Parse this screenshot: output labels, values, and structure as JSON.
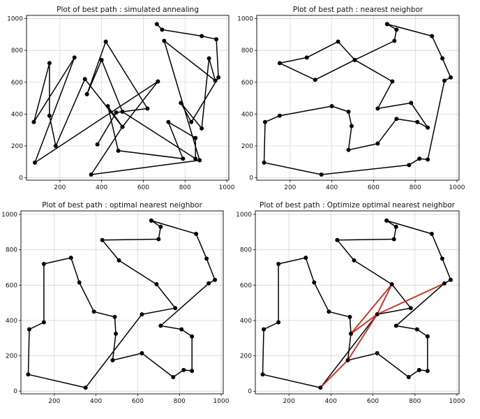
{
  "chart_data": [
    {
      "type": "line",
      "title": "Plot of best path : simulated annealing",
      "xticks": [
        200,
        400,
        600,
        800,
        1000
      ],
      "yticks": [
        0,
        200,
        400,
        600,
        800,
        1000
      ],
      "xlim": [
        40,
        1010
      ],
      "ylim": [
        -15,
        1020
      ],
      "grid": true,
      "series": [
        {
          "color": "#000000",
          "x": [
            665,
            690,
            880,
            950,
            960,
            830,
            780,
            880,
            915,
            945,
            700,
            870,
            350,
            500,
            320,
            180,
            150,
            150,
            75,
            270,
            80,
            670,
            500,
            430,
            480,
            790,
            720,
            850,
            850,
            500,
            400,
            330,
            420,
            620,
            470,
            380
          ],
          "y": [
            965,
            930,
            890,
            870,
            630,
            350,
            470,
            310,
            750,
            610,
            860,
            110,
            20,
            320,
            620,
            200,
            390,
            720,
            350,
            755,
            95,
            605,
            320,
            450,
            170,
            120,
            350,
            250,
            120,
            415,
            740,
            525,
            855,
            435,
            410,
            210
          ]
        }
      ]
    },
    {
      "type": "line",
      "title": "Plot of best path : nearest neighbor",
      "xticks": [
        200,
        400,
        600,
        800,
        1000
      ],
      "yticks": [
        0,
        200,
        400,
        600,
        800,
        1000
      ],
      "xlim": [
        40,
        1010
      ],
      "ylim": [
        -15,
        1020
      ],
      "grid": true,
      "series": [
        {
          "color": "#000000",
          "x": [
            665,
            710,
            700,
            510,
            430,
            280,
            150,
            320,
            510,
            690,
            620,
            780,
            860,
            810,
            710,
            620,
            480,
            495,
            480,
            400,
            150,
            80,
            75,
            350,
            770,
            820,
            860,
            940,
            970,
            930,
            880,
            665
          ],
          "y": [
            965,
            930,
            860,
            740,
            855,
            755,
            720,
            615,
            740,
            605,
            435,
            470,
            315,
            350,
            370,
            215,
            175,
            325,
            415,
            450,
            390,
            350,
            95,
            20,
            80,
            120,
            115,
            610,
            630,
            750,
            890,
            965
          ],
          "closed": true
        }
      ]
    },
    {
      "type": "line",
      "title": "Plot of best path : optimal nearest neighbor",
      "xticks": [
        200,
        400,
        600,
        800,
        1000
      ],
      "yticks": [
        0,
        200,
        400,
        600,
        800,
        1000
      ],
      "xlim": [
        40,
        1010
      ],
      "ylim": [
        -15,
        1020
      ],
      "grid": true,
      "series": [
        {
          "color": "#000000",
          "x": [
            665,
            710,
            700,
            430,
            510,
            690,
            780,
            620,
            350,
            75,
            80,
            150,
            150,
            280,
            320,
            390,
            490,
            495,
            480,
            620,
            770,
            820,
            860,
            860,
            810,
            710,
            940,
            970,
            930,
            880,
            665
          ],
          "y": [
            965,
            930,
            860,
            855,
            740,
            605,
            470,
            435,
            20,
            95,
            350,
            390,
            720,
            755,
            615,
            450,
            420,
            325,
            175,
            215,
            80,
            120,
            115,
            310,
            350,
            370,
            610,
            630,
            750,
            890,
            965
          ],
          "closed": true
        }
      ]
    },
    {
      "type": "line",
      "title": "Plot of best path : Optimize optimal nearest neighbor",
      "xticks": [
        200,
        400,
        600,
        800,
        1000
      ],
      "yticks": [
        0,
        200,
        400,
        600,
        800,
        1000
      ],
      "xlim": [
        40,
        1010
      ],
      "ylim": [
        -15,
        1020
      ],
      "grid": true,
      "series": [
        {
          "color": "#000000",
          "x": [
            665,
            710,
            700,
            430,
            510,
            690,
            780,
            620,
            350,
            75,
            80,
            150,
            150,
            280,
            320,
            390,
            490,
            495,
            480,
            620,
            770,
            820,
            860,
            860,
            810,
            710,
            940,
            970,
            930,
            880,
            665
          ],
          "y": [
            965,
            930,
            860,
            855,
            740,
            605,
            470,
            435,
            20,
            95,
            350,
            390,
            720,
            755,
            615,
            450,
            420,
            325,
            175,
            215,
            80,
            120,
            115,
            310,
            350,
            370,
            610,
            630,
            750,
            890,
            965
          ],
          "closed": true
        },
        {
          "color": "#c0392b",
          "x": [
            940,
            620,
            495,
            690,
            620,
            480,
            350
          ],
          "y": [
            610,
            435,
            325,
            605,
            435,
            175,
            20
          ]
        }
      ]
    }
  ]
}
